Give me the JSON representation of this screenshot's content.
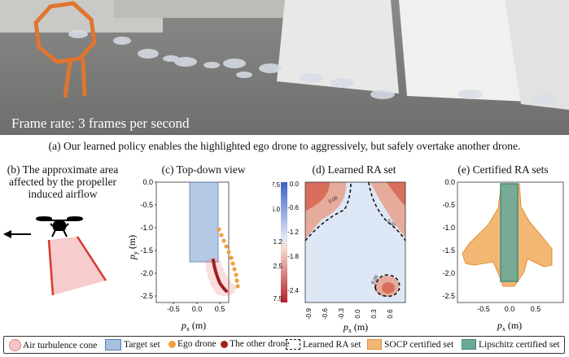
{
  "photo": {
    "overlay_text": "Frame rate: 3 frames per second",
    "caption": "(a) Our learned policy enables the highlighted ego drone to aggressively, but safely overtake another drone."
  },
  "panel_b": {
    "title_lines": [
      "(b) The approximate area",
      "affected by the propeller",
      "induced airflow"
    ]
  },
  "panel_c": {
    "title": "(c) Top-down view",
    "xlabel": "p_x (m)",
    "ylabel": "p_y (m)",
    "xticks": [
      "-0.5",
      "0.0",
      "0.5"
    ],
    "yticks": [
      "0.0",
      "-0.5",
      "-1.0",
      "-1.5",
      "-2.0",
      "-2.5"
    ]
  },
  "panel_d": {
    "title": "(d) Learned RA set",
    "xticks": [
      "-0.9",
      "-0.6",
      "-0.3",
      "0.0",
      "0.3",
      "0.6"
    ],
    "colorbar_ticks": [
      "7.5",
      "5.0",
      "2.5",
      "0.0",
      "-1.2",
      "-2.5",
      "-5.0",
      "-7.5"
    ],
    "colorbar_ticks_right": [
      "0.0",
      "-0.6",
      "-1.2",
      "-1.8",
      "-2.4"
    ],
    "contour_label": "0.00"
  },
  "panel_e": {
    "title": "(e) Certified RA sets",
    "xlabel": "p_x (m)",
    "xticks": [
      "-0.5",
      "0.0",
      "0.5"
    ],
    "yticks": [
      "0.0",
      "-0.5",
      "-1.0",
      "-1.5",
      "-2.0",
      "-2.5"
    ]
  },
  "legend": {
    "items": [
      "Air turbulence cone",
      "Target set",
      "Ego drone",
      "The other drone",
      "Learned RA set",
      "SOCP certified set",
      "Lipschitz certified set"
    ]
  },
  "colors": {
    "target": "#a8c0e0",
    "ego": "#f0a040",
    "other": "#a02020",
    "socp": "#f2b873",
    "lipschitz": "#6aa898",
    "cone": "#f6c6c6"
  }
}
